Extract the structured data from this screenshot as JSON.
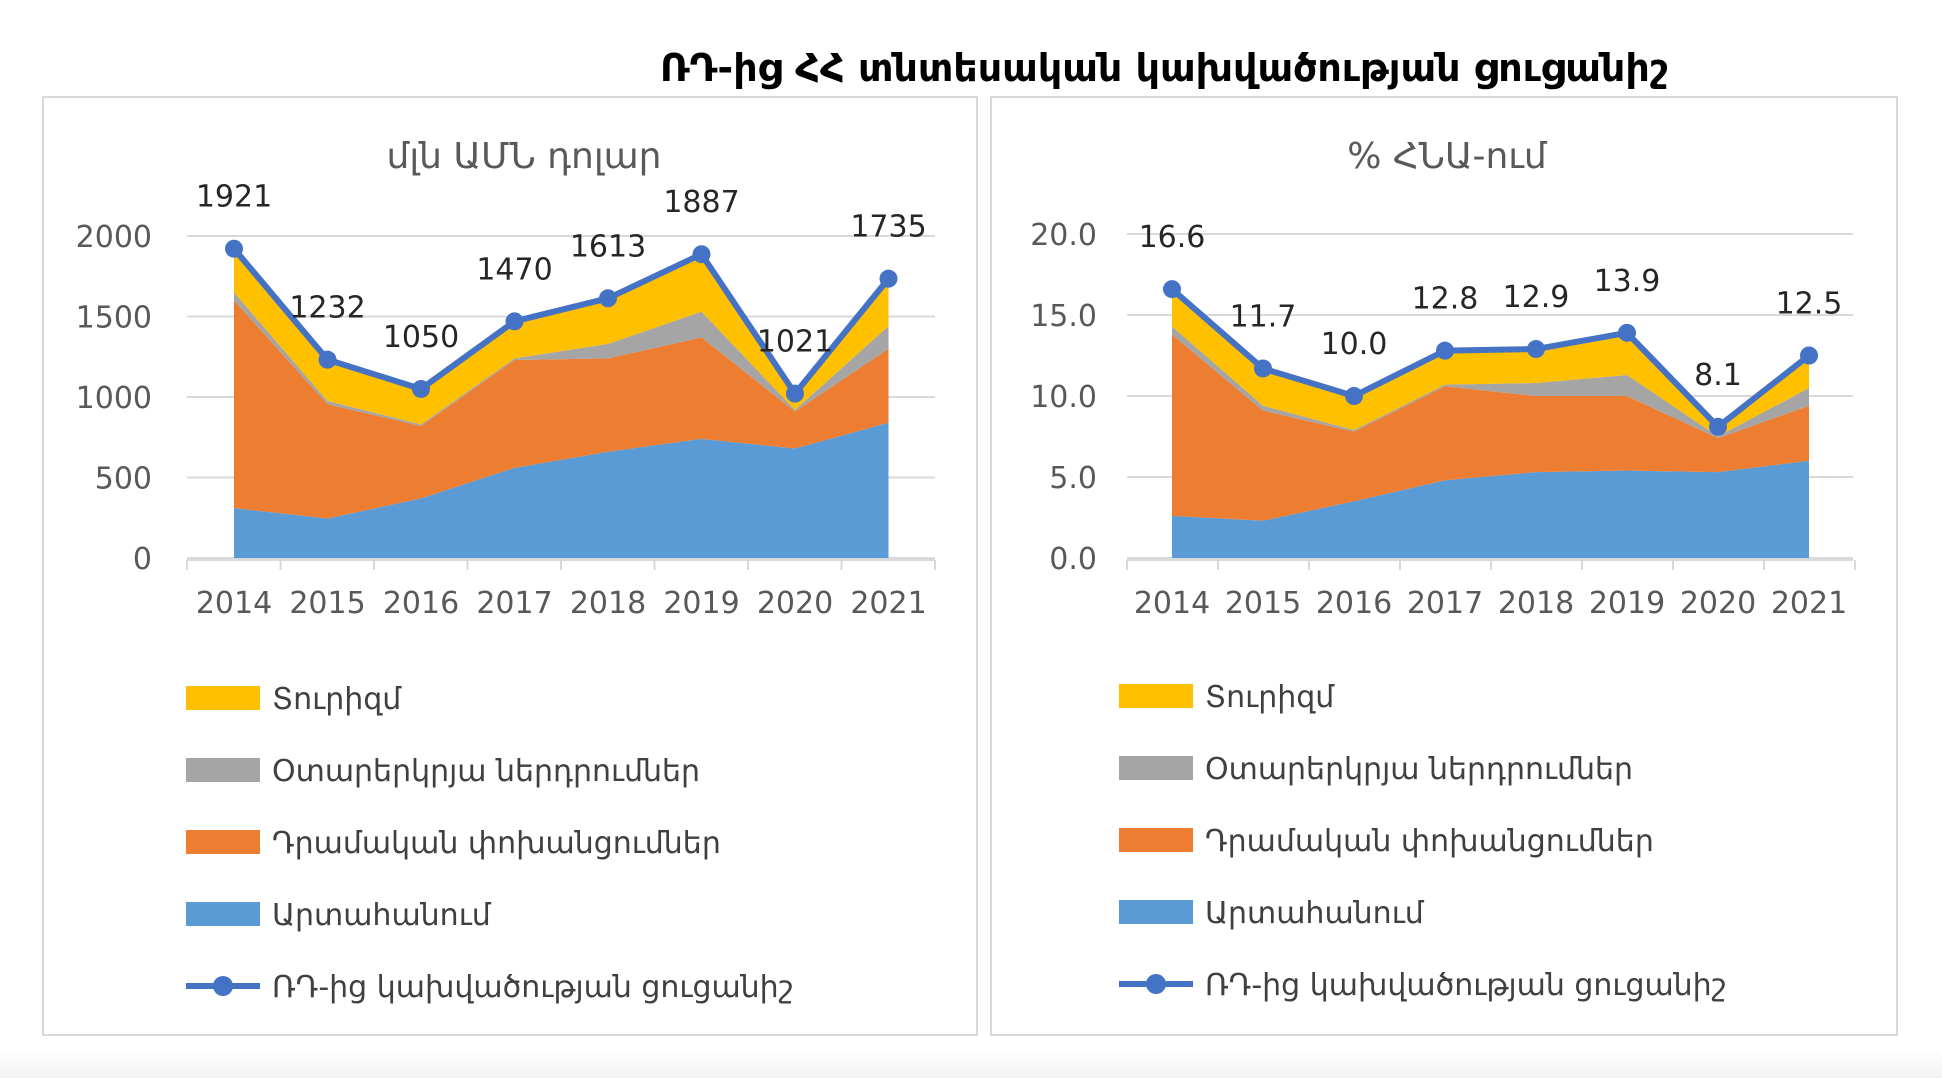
{
  "title": "ՌԴ-ից ՀՀ տնտեսական կախվածության ցուցանիշ",
  "colors": {
    "tourism": "#FFC000",
    "investment": "#A5A5A5",
    "remittances": "#ED7D31",
    "exports": "#5B9BD5",
    "index": "#4472C4",
    "grid": "#d9d9d9",
    "axis_text": "#595959"
  },
  "legend": [
    {
      "key": "tourism",
      "label": "Տուրիզմ",
      "kind": "area"
    },
    {
      "key": "investment",
      "label": "Օտարերկրյա ներդրումներ",
      "kind": "area"
    },
    {
      "key": "remittances",
      "label": "Դրամական փոխանցումներ",
      "kind": "area"
    },
    {
      "key": "exports",
      "label": "Արտահանում",
      "kind": "area"
    },
    {
      "key": "index",
      "label": "ՌԴ-ից կախվածության ցուցանիշ",
      "kind": "line"
    }
  ],
  "chart_data": [
    {
      "type": "area",
      "title": "մլն ԱՄՆ դոլար",
      "categories": [
        "2014",
        "2015",
        "2016",
        "2017",
        "2018",
        "2019",
        "2020",
        "2021"
      ],
      "ylim": [
        0,
        2000
      ],
      "yticks": [
        "0",
        "500",
        "1000",
        "1500",
        "2000"
      ],
      "yticks_values": [
        0,
        500,
        1000,
        1500,
        2000
      ],
      "series": [
        {
          "key": "exports",
          "name": "Արտահանում",
          "values": [
            310,
            245,
            370,
            560,
            660,
            740,
            680,
            840
          ]
        },
        {
          "key": "remittances",
          "name": "Դրամական փոխանցումներ",
          "values": [
            1290,
            710,
            450,
            670,
            580,
            630,
            230,
            460
          ]
        },
        {
          "key": "investment",
          "name": "Օտարերկրյա ներդրումներ",
          "values": [
            50,
            20,
            10,
            10,
            90,
            160,
            10,
            140
          ]
        },
        {
          "key": "tourism",
          "name": "Տուրիզմ",
          "values": [
            271,
            257,
            220,
            230,
            283,
            357,
            101,
            295
          ]
        }
      ],
      "index": {
        "name": "ՌԴ-ից կախվածության ցուցանիշ",
        "values": [
          1921,
          1232,
          1050,
          1470,
          1613,
          1887,
          1021,
          1735
        ],
        "labels": [
          "1921",
          "1232",
          "1050",
          "1470",
          "1613",
          "1887",
          "1021",
          "1735"
        ]
      },
      "grid": true,
      "legend_position": "bottom"
    },
    {
      "type": "area",
      "title": "% ՀՆԱ-ում",
      "categories": [
        "2014",
        "2015",
        "2016",
        "2017",
        "2018",
        "2019",
        "2020",
        "2021"
      ],
      "ylim": [
        0,
        20
      ],
      "yticks": [
        "0.0",
        "5.0",
        "10.0",
        "15.0",
        "20.0"
      ],
      "yticks_values": [
        0,
        5,
        10,
        15,
        20
      ],
      "series": [
        {
          "key": "exports",
          "name": "Արտահանում",
          "values": [
            2.6,
            2.3,
            3.5,
            4.8,
            5.3,
            5.4,
            5.3,
            6.0
          ]
        },
        {
          "key": "remittances",
          "name": "Դրամական փոխանցումներ",
          "values": [
            11.2,
            6.8,
            4.3,
            5.8,
            4.7,
            4.6,
            2.1,
            3.4
          ]
        },
        {
          "key": "investment",
          "name": "Օտարերկրյա ներդրումներ",
          "values": [
            0.5,
            0.3,
            0.1,
            0.1,
            0.8,
            1.3,
            0.1,
            1.1
          ]
        },
        {
          "key": "tourism",
          "name": "Տուրիզմ",
          "values": [
            2.3,
            2.3,
            2.1,
            2.1,
            2.1,
            2.6,
            0.6,
            2.0
          ]
        }
      ],
      "index": {
        "name": "ՌԴ-ից կախվածության ցուցանիշ",
        "values": [
          16.6,
          11.7,
          10.0,
          12.8,
          12.9,
          13.9,
          8.1,
          12.5
        ],
        "labels": [
          "16.6",
          "11.7",
          "10.0",
          "12.8",
          "12.9",
          "13.9",
          "8.1",
          "12.5"
        ]
      },
      "grid": true,
      "legend_position": "bottom"
    }
  ]
}
